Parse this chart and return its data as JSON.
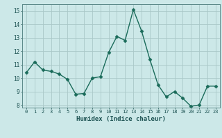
{
  "x": [
    0,
    1,
    2,
    3,
    4,
    5,
    6,
    7,
    8,
    9,
    10,
    11,
    12,
    13,
    14,
    15,
    16,
    17,
    18,
    19,
    20,
    21,
    22,
    23
  ],
  "y": [
    10.4,
    11.2,
    10.6,
    10.5,
    10.3,
    9.9,
    8.8,
    8.85,
    10.0,
    10.1,
    11.9,
    13.1,
    12.8,
    15.1,
    13.5,
    11.4,
    9.5,
    8.6,
    9.0,
    8.5,
    7.9,
    8.0,
    9.4,
    9.4
  ],
  "xlabel": "Humidex (Indice chaleur)",
  "xlim": [
    -0.5,
    23.5
  ],
  "ylim": [
    7.8,
    15.5
  ],
  "yticks": [
    8,
    9,
    10,
    11,
    12,
    13,
    14,
    15
  ],
  "xticks": [
    0,
    1,
    2,
    3,
    4,
    5,
    6,
    7,
    8,
    9,
    10,
    11,
    12,
    13,
    14,
    15,
    16,
    17,
    18,
    19,
    20,
    21,
    22,
    23
  ],
  "bg_color": "#cce8e8",
  "grid_color": "#aac8c8",
  "line_color": "#1a6b5a",
  "marker_color": "#1a6b5a",
  "xlabel_color": "#1a5050",
  "tick_color": "#1a5050",
  "spine_color": "#5a8888"
}
